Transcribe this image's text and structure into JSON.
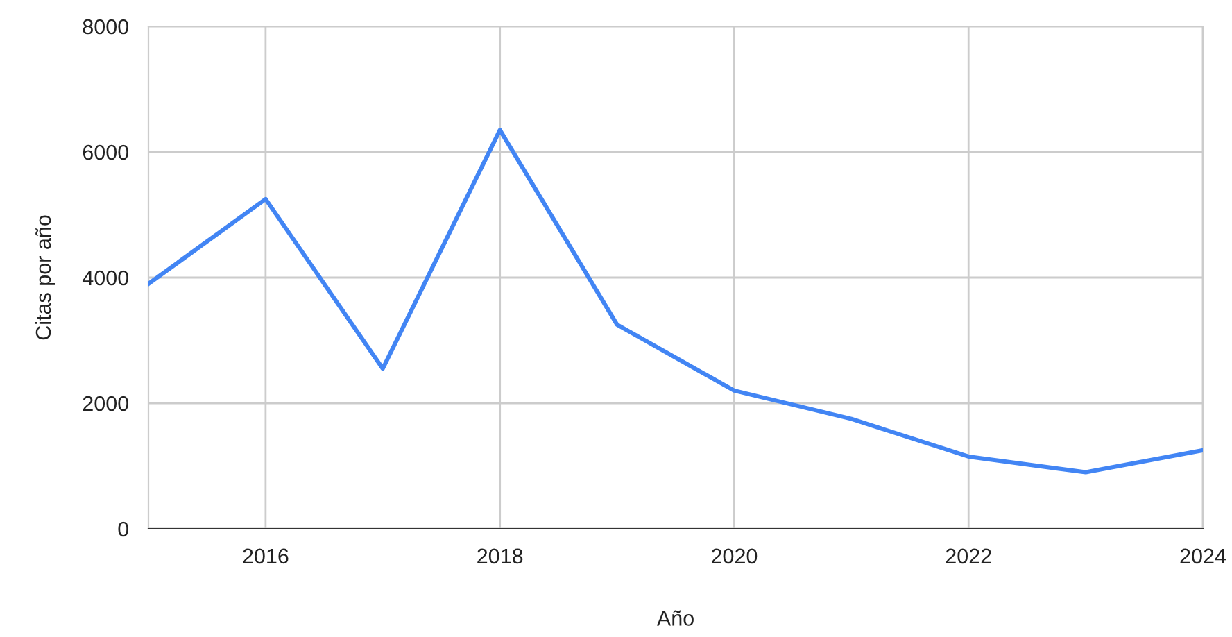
{
  "chart_data": {
    "type": "line",
    "xlabel": "Año",
    "ylabel": "Citas por año",
    "x": [
      2015,
      2016,
      2017,
      2018,
      2019,
      2020,
      2021,
      2022,
      2023,
      2024
    ],
    "series": [
      {
        "color": "#4285f4",
        "values": [
          3900,
          5250,
          2550,
          6350,
          3250,
          2200,
          1750,
          1150,
          900,
          1250
        ]
      }
    ],
    "xlim": [
      2015,
      2024
    ],
    "xticks": [
      2016,
      2018,
      2020,
      2022,
      2024
    ],
    "ylim": [
      0,
      8000
    ],
    "yticks": [
      0,
      2000,
      4000,
      6000,
      8000
    ],
    "grid": true,
    "marker": "none",
    "line_style": "solid"
  }
}
